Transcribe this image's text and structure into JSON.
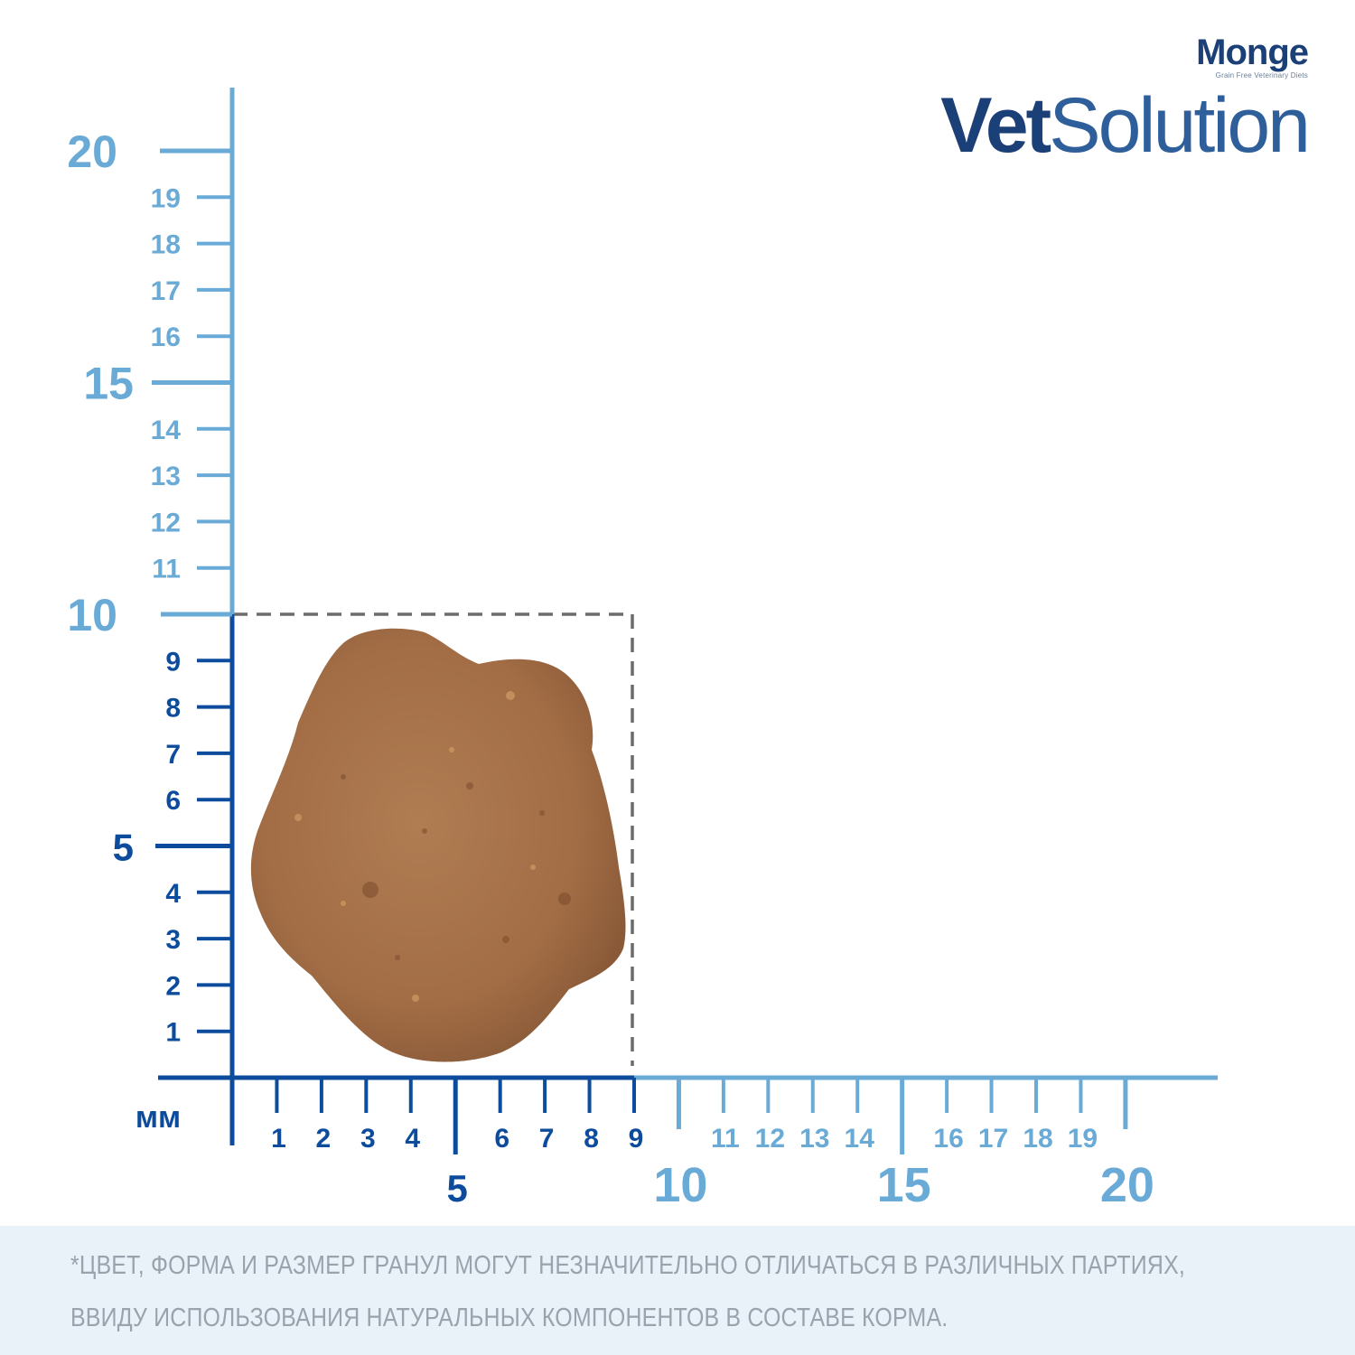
{
  "brand": {
    "company": "Monge",
    "tagline": "Grain Free Veterinary Diets",
    "product_bold": "Vet",
    "product_light": "Solution"
  },
  "ruler": {
    "unit": "мм",
    "y_major": [
      "5",
      "10",
      "15",
      "20"
    ],
    "y_minor": [
      "1",
      "2",
      "3",
      "4",
      "6",
      "7",
      "8",
      "9",
      "11",
      "12",
      "13",
      "14",
      "16",
      "17",
      "18",
      "19"
    ],
    "x_major": [
      "5",
      "10",
      "15",
      "20"
    ],
    "x_minor": [
      "1",
      "2",
      "3",
      "4",
      "6",
      "7",
      "8",
      "9",
      "11",
      "12",
      "13",
      "14",
      "16",
      "17",
      "18",
      "19"
    ],
    "kibble_width_mm": 9,
    "kibble_height_mm": 10,
    "colors": {
      "dark": "#0d4c9c",
      "light": "#6aaad6",
      "dashed": "#6b6b6b",
      "kibble": "#a9734a"
    }
  },
  "disclaimer": {
    "line1": "*ЦВЕТ, ФОРМА И РАЗМЕР ГРАНУЛ МОГУТ НЕЗНАЧИТЕЛЬНО ОТЛИЧАТЬСЯ В РАЗЛИЧНЫХ ПАРТИЯХ,",
    "line2": "ВВИДУ ИСПОЛЬЗОВАНИЯ НАТУРАЛЬНЫХ КОМПОНЕНТОВ В СОСТАВЕ КОРМА."
  }
}
